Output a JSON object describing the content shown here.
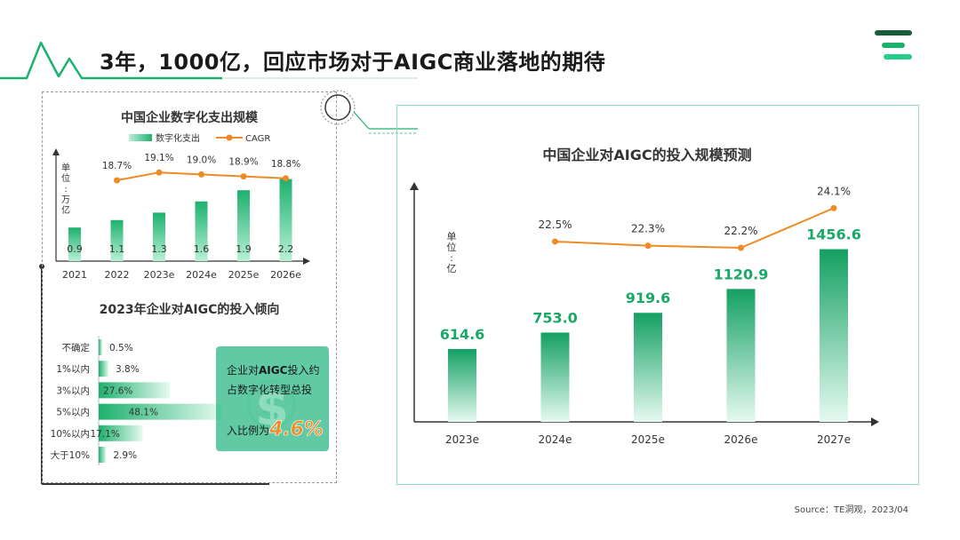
{
  "title": "3年，1000亿，回应市场对于AIGC商业落地的期待",
  "source": "Source：TE洞观，2023/04",
  "colors": {
    "green": "#1db16e",
    "green_light": "#b9f0d6",
    "orange": "#f08a24",
    "accent_line": "#1db16e"
  },
  "chart_data": [
    {
      "type": "bar",
      "title": "中国企业数字化支出规模",
      "unit_label": "单位：万亿",
      "unit_chars": [
        "单",
        "位",
        ":",
        "万",
        "亿"
      ],
      "legend": [
        "数字化支出",
        "CAGR"
      ],
      "categories": [
        "2021",
        "2022",
        "2023e",
        "2024e",
        "2025e",
        "2026e"
      ],
      "series": [
        {
          "name": "数字化支出",
          "type": "bar",
          "values": [
            0.9,
            1.1,
            1.3,
            1.6,
            1.9,
            2.2
          ],
          "labels": [
            "0.9",
            "1.1",
            "1.3",
            "1.6",
            "1.9",
            "2.2"
          ]
        },
        {
          "name": "CAGR",
          "type": "line",
          "x": [
            "2022",
            "2023e",
            "2024e",
            "2025e",
            "2026e"
          ],
          "values": [
            18.7,
            19.1,
            19.0,
            18.9,
            18.8
          ],
          "labels": [
            "18.7%",
            "19.1%",
            "19.0%",
            "18.9%",
            "18.8%"
          ]
        }
      ]
    },
    {
      "type": "bar",
      "orientation": "horizontal",
      "title": "2023年企业对AIGC的投入倾向",
      "categories": [
        "不确定",
        "1%以内",
        "3%以内",
        "5%以内",
        "10%以内",
        "大于10%"
      ],
      "values": [
        0.5,
        3.8,
        27.6,
        48.1,
        17.1,
        2.9
      ],
      "labels": [
        "0.5%",
        "3.8%",
        "27.6%",
        "48.1%",
        "17.1%",
        "2.9%"
      ],
      "callout": {
        "line1": "企业对",
        "highlight": "AIGC",
        "line1b": "投入约",
        "line2": "占数字化转型总投",
        "line3": "入比例为",
        "value": "4.6%"
      }
    },
    {
      "type": "bar",
      "title": "中国企业对AIGC的投入规模预测",
      "unit_label": "单位：亿",
      "unit_chars": [
        "单",
        "位",
        ":",
        "亿"
      ],
      "categories": [
        "2023e",
        "2024e",
        "2025e",
        "2026e",
        "2027e"
      ],
      "series": [
        {
          "name": "投入规模",
          "type": "bar",
          "values": [
            614.6,
            753.0,
            919.6,
            1120.9,
            1456.6
          ],
          "labels": [
            "614.6",
            "753.0",
            "919.6",
            "1120.9",
            "1456.6"
          ]
        },
        {
          "name": "CAGR",
          "type": "line",
          "x": [
            "2024e",
            "2025e",
            "2026e",
            "2027e"
          ],
          "values": [
            22.5,
            22.3,
            22.2,
            24.1
          ],
          "labels": [
            "22.5%",
            "22.3%",
            "22.2%",
            "24.1%"
          ]
        }
      ]
    }
  ]
}
